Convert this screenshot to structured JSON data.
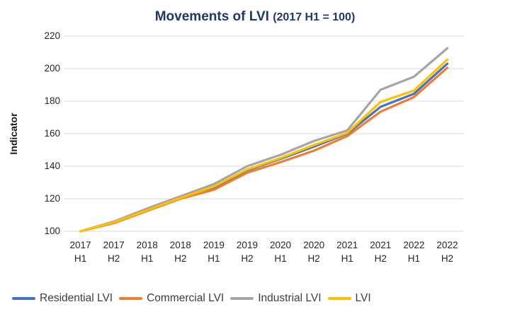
{
  "title": {
    "main": "Movements of LVI ",
    "paren": "(2017 H1 = 100)"
  },
  "y_axis_title": "Indicator",
  "chart_data": {
    "type": "line",
    "categories": [
      "2017 H1",
      "2017 H2",
      "2018 H1",
      "2018 H2",
      "2019 H1",
      "2019 H2",
      "2020 H1",
      "2020 H2",
      "2021 H1",
      "2021 H2",
      "2022 H1",
      "2022 H2"
    ],
    "series": [
      {
        "name": "Residential LVI",
        "color": "#4472C4",
        "values": [
          100,
          105.5,
          113,
          120.5,
          127,
          137.5,
          144.5,
          152,
          160,
          176.5,
          184.5,
          203
        ]
      },
      {
        "name": "Commercial LVI",
        "color": "#ED7D31",
        "values": [
          100,
          105,
          112.5,
          120,
          125.5,
          136,
          142.5,
          149.5,
          158.5,
          173.5,
          182.5,
          200.5
        ]
      },
      {
        "name": "Industrial LVI",
        "color": "#A5A5A5",
        "values": [
          100,
          106,
          114,
          121.5,
          129,
          140,
          147,
          155.5,
          162,
          187,
          195,
          212.5
        ]
      },
      {
        "name": "LVI",
        "color": "#FFC000",
        "values": [
          100,
          105.5,
          113,
          120.5,
          127.5,
          138,
          145,
          153,
          160.5,
          179.5,
          186.5,
          205.5
        ]
      }
    ],
    "title": "Movements of LVI (2017 H1 = 100)",
    "xlabel": "",
    "ylabel": "Indicator",
    "ylim": [
      100,
      220
    ],
    "ytick_step": 20,
    "yticks": [
      100,
      120,
      140,
      160,
      180,
      200,
      220
    ],
    "grid": true,
    "legend_position": "bottom"
  },
  "colors": {
    "title": "#1F3864",
    "grid": "#D9D9D9",
    "axis_text": "#262626",
    "legend_text": "#3D3D3D"
  }
}
